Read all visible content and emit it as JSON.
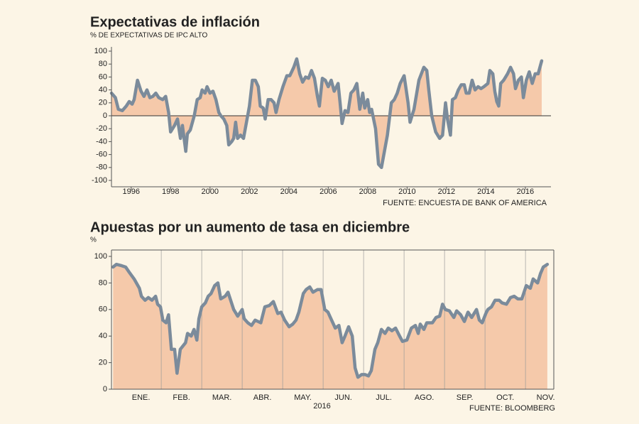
{
  "chart_data": [
    {
      "type": "line",
      "title": "Expectativas de inflación",
      "subtitle": "% DE EXPECTATIVAS DE IPC ALTO",
      "source": "FUENTE: ENCUESTA DE BANK OF AMERICA",
      "color": "#7b8b9b",
      "area": true,
      "fill_color": "#f5c9aa",
      "xlim": [
        1995,
        2017.3
      ],
      "xticks": [
        1996,
        1998,
        2000,
        2002,
        2004,
        2006,
        2008,
        2010,
        2012,
        2014,
        2016
      ],
      "ylim": [
        -100,
        100
      ],
      "yticks": [
        -100,
        -80,
        -60,
        -40,
        -20,
        0,
        20,
        40,
        60,
        80,
        100
      ],
      "x": [
        1995.0,
        1995.2,
        1995.35,
        1995.55,
        1995.75,
        1995.9,
        1996.05,
        1996.15,
        1996.32,
        1996.5,
        1996.65,
        1996.8,
        1996.95,
        1997.1,
        1997.25,
        1997.4,
        1997.6,
        1997.75,
        1997.9,
        1998.0,
        1998.2,
        1998.35,
        1998.5,
        1998.6,
        1998.77,
        1998.85,
        1999.0,
        1999.2,
        1999.35,
        1999.5,
        1999.6,
        1999.75,
        1999.85,
        2000.0,
        2000.15,
        2000.3,
        2000.45,
        2000.55,
        2000.7,
        2000.85,
        2000.95,
        2001.1,
        2001.2,
        2001.3,
        2001.4,
        2001.55,
        2001.7,
        2001.85,
        2002.0,
        2002.15,
        2002.3,
        2002.45,
        2002.55,
        2002.7,
        2002.8,
        2002.95,
        2003.1,
        2003.25,
        2003.35,
        2003.5,
        2003.7,
        2003.9,
        2004.05,
        2004.25,
        2004.4,
        2004.55,
        2004.7,
        2004.85,
        2005.0,
        2005.15,
        2005.3,
        2005.45,
        2005.55,
        2005.7,
        2005.85,
        2006.0,
        2006.15,
        2006.3,
        2006.5,
        2006.6,
        2006.7,
        2006.85,
        2007.0,
        2007.15,
        2007.3,
        2007.45,
        2007.6,
        2007.75,
        2007.85,
        2008.0,
        2008.1,
        2008.2,
        2008.4,
        2008.55,
        2008.7,
        2008.85,
        2009.0,
        2009.2,
        2009.35,
        2009.5,
        2009.65,
        2009.85,
        2010.05,
        2010.15,
        2010.35,
        2010.6,
        2010.85,
        2011.0,
        2011.1,
        2011.25,
        2011.45,
        2011.65,
        2011.8,
        2011.95,
        2012.05,
        2012.2,
        2012.3,
        2012.45,
        2012.6,
        2012.75,
        2012.9,
        2013.0,
        2013.15,
        2013.3,
        2013.45,
        2013.6,
        2013.75,
        2013.9,
        2014.1,
        2014.2,
        2014.35,
        2014.45,
        2014.55,
        2014.65,
        2014.75,
        2014.9,
        2015.1,
        2015.25,
        2015.4,
        2015.5,
        2015.65,
        2015.8,
        2015.9,
        2016.05,
        2016.2,
        2016.35,
        2016.5,
        2016.65,
        2016.83
      ],
      "values": [
        35,
        28,
        10,
        8,
        15,
        22,
        18,
        25,
        55,
        38,
        30,
        40,
        28,
        30,
        35,
        28,
        25,
        30,
        5,
        -25,
        -15,
        -5,
        -35,
        -15,
        -55,
        -28,
        -22,
        0,
        25,
        28,
        40,
        35,
        45,
        35,
        38,
        25,
        5,
        0,
        -5,
        -15,
        -45,
        -40,
        -35,
        -10,
        -35,
        -30,
        -35,
        -10,
        15,
        55,
        55,
        45,
        15,
        12,
        -5,
        25,
        25,
        20,
        5,
        25,
        45,
        62,
        62,
        75,
        88,
        65,
        52,
        60,
        58,
        70,
        58,
        30,
        15,
        58,
        55,
        45,
        55,
        38,
        50,
        20,
        -12,
        8,
        5,
        35,
        40,
        50,
        10,
        35,
        12,
        25,
        5,
        10,
        -20,
        -75,
        -80,
        -55,
        -30,
        20,
        25,
        35,
        50,
        62,
        20,
        -10,
        10,
        55,
        75,
        70,
        40,
        0,
        -25,
        -35,
        -30,
        20,
        -5,
        -30,
        25,
        28,
        40,
        48,
        48,
        35,
        35,
        55,
        40,
        45,
        42,
        45,
        50,
        70,
        65,
        38,
        22,
        15,
        50,
        55,
        65,
        75,
        65,
        42,
        55,
        60,
        28,
        55,
        68,
        50,
        65,
        65,
        85
      ]
    },
    {
      "type": "line",
      "title": "Apuestas por un aumento de tasa en diciembre",
      "subtitle": "%",
      "source": "FUENTE: BLOOMBERG",
      "annotation": "2016",
      "color": "#7b8b9b",
      "area": true,
      "fill_color": "#f5c9aa",
      "xgrid": true,
      "xlim": [
        0.77,
        11.7
      ],
      "xticks": [
        {
          "value": 1.5,
          "label": "ENE."
        },
        {
          "value": 2.5,
          "label": "FEB."
        },
        {
          "value": 3.5,
          "label": "MAR."
        },
        {
          "value": 4.5,
          "label": "ABR."
        },
        {
          "value": 5.5,
          "label": "MAY."
        },
        {
          "value": 6.5,
          "label": "JUN."
        },
        {
          "value": 7.5,
          "label": "JUL."
        },
        {
          "value": 8.5,
          "label": "AGO."
        },
        {
          "value": 9.5,
          "label": "SEP."
        },
        {
          "value": 10.5,
          "label": "OCT."
        },
        {
          "value": 11.5,
          "label": "NOV."
        }
      ],
      "ylim": [
        0,
        100
      ],
      "yticks": [
        0,
        20,
        40,
        60,
        80,
        100
      ],
      "x": [
        0.81,
        0.89,
        1.02,
        1.12,
        1.21,
        1.33,
        1.46,
        1.51,
        1.6,
        1.68,
        1.77,
        1.86,
        1.91,
        1.98,
        2.04,
        2.12,
        2.18,
        2.25,
        2.33,
        2.39,
        2.47,
        2.6,
        2.65,
        2.74,
        2.81,
        2.88,
        2.93,
        3.0,
        3.09,
        3.16,
        3.23,
        3.32,
        3.4,
        3.47,
        3.58,
        3.65,
        3.79,
        3.89,
        4.0,
        4.05,
        4.14,
        4.23,
        4.32,
        4.46,
        4.56,
        4.67,
        4.77,
        4.88,
        4.96,
        5.05,
        5.16,
        5.25,
        5.33,
        5.4,
        5.51,
        5.58,
        5.67,
        5.75,
        5.86,
        5.95,
        6.04,
        6.12,
        6.21,
        6.3,
        6.39,
        6.47,
        6.54,
        6.63,
        6.72,
        6.79,
        6.86,
        6.95,
        7.04,
        7.12,
        7.19,
        7.28,
        7.35,
        7.44,
        7.53,
        7.61,
        7.7,
        7.79,
        7.89,
        7.96,
        8.07,
        8.18,
        8.28,
        8.35,
        8.4,
        8.49,
        8.56,
        8.7,
        8.79,
        8.88,
        8.95,
        9.02,
        9.12,
        9.23,
        9.3,
        9.4,
        9.49,
        9.58,
        9.67,
        9.79,
        9.86,
        9.93,
        10.02,
        10.07,
        10.16,
        10.25,
        10.35,
        10.42,
        10.53,
        10.63,
        10.72,
        10.81,
        10.91,
        11.02,
        11.12,
        11.19,
        11.3,
        11.37,
        11.44,
        11.54
      ],
      "values": [
        92,
        94,
        93,
        92,
        88,
        83,
        76,
        70,
        67,
        69,
        67,
        70,
        64,
        62,
        52,
        50,
        56,
        30,
        30,
        12,
        30,
        35,
        42,
        40,
        45,
        37,
        53,
        62,
        65,
        70,
        72,
        78,
        80,
        68,
        70,
        73,
        60,
        55,
        60,
        53,
        50,
        48,
        52,
        50,
        62,
        63,
        66,
        57,
        58,
        52,
        47,
        49,
        52,
        58,
        72,
        75,
        77,
        73,
        75,
        75,
        60,
        58,
        52,
        46,
        48,
        35,
        40,
        47,
        40,
        16,
        9,
        11,
        11,
        10,
        14,
        30,
        35,
        45,
        42,
        46,
        44,
        46,
        40,
        36,
        37,
        46,
        48,
        42,
        49,
        45,
        50,
        50,
        54,
        55,
        64,
        60,
        59,
        54,
        59,
        56,
        51,
        58,
        54,
        60,
        52,
        50,
        57,
        60,
        62,
        67,
        67,
        65,
        64,
        69,
        70,
        68,
        68,
        78,
        76,
        83,
        80,
        87,
        92,
        94
      ]
    }
  ]
}
